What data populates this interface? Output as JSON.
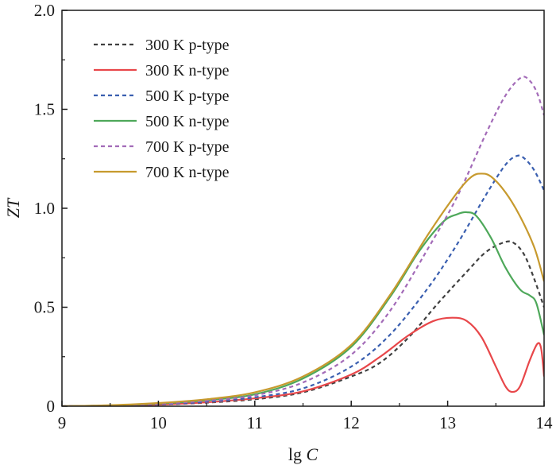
{
  "chart_data": {
    "type": "line",
    "xlabel_text": "lg ",
    "xlabel_var": "C",
    "ylabel": "ZT",
    "xlim": [
      9,
      14
    ],
    "ylim": [
      0,
      2.0
    ],
    "xticks": [
      9,
      10,
      11,
      12,
      13,
      14
    ],
    "xtick_labels": [
      "9",
      "10",
      "11",
      "12",
      "13",
      "14"
    ],
    "yticks": [
      0,
      0.5,
      1.0,
      1.5,
      2.0
    ],
    "ytick_labels": [
      "0",
      "0.5",
      "1.0",
      "1.5",
      "2.0"
    ],
    "grid": false,
    "legend_position": "top-left",
    "series": [
      {
        "name": "300 K p-type",
        "color": "#404040",
        "dash": "dashed",
        "points": [
          [
            9,
            0
          ],
          [
            9.5,
            0.002
          ],
          [
            10,
            0.008
          ],
          [
            10.5,
            0.018
          ],
          [
            11,
            0.035
          ],
          [
            11.5,
            0.07
          ],
          [
            12,
            0.15
          ],
          [
            12.3,
            0.22
          ],
          [
            12.6,
            0.35
          ],
          [
            12.9,
            0.52
          ],
          [
            13.2,
            0.68
          ],
          [
            13.4,
            0.78
          ],
          [
            13.6,
            0.83
          ],
          [
            13.7,
            0.82
          ],
          [
            13.8,
            0.76
          ],
          [
            13.9,
            0.64
          ],
          [
            14,
            0.5
          ]
        ]
      },
      {
        "name": "300 K n-type",
        "color": "#e8474a",
        "dash": "solid",
        "points": [
          [
            9,
            0
          ],
          [
            9.5,
            0.002
          ],
          [
            10,
            0.008
          ],
          [
            10.5,
            0.02
          ],
          [
            11,
            0.04
          ],
          [
            11.5,
            0.075
          ],
          [
            12,
            0.16
          ],
          [
            12.3,
            0.25
          ],
          [
            12.6,
            0.36
          ],
          [
            12.85,
            0.43
          ],
          [
            13.05,
            0.447
          ],
          [
            13.2,
            0.43
          ],
          [
            13.35,
            0.35
          ],
          [
            13.5,
            0.2
          ],
          [
            13.6,
            0.1
          ],
          [
            13.67,
            0.072
          ],
          [
            13.75,
            0.1
          ],
          [
            13.85,
            0.23
          ],
          [
            13.93,
            0.315
          ],
          [
            13.97,
            0.29
          ],
          [
            14,
            0.15
          ]
        ]
      },
      {
        "name": "500 K p-type",
        "color": "#3a5fb0",
        "dash": "dashed",
        "points": [
          [
            9,
            0
          ],
          [
            9.5,
            0.003
          ],
          [
            10,
            0.01
          ],
          [
            10.5,
            0.022
          ],
          [
            11,
            0.045
          ],
          [
            11.5,
            0.09
          ],
          [
            12,
            0.2
          ],
          [
            12.4,
            0.36
          ],
          [
            12.8,
            0.6
          ],
          [
            13.1,
            0.82
          ],
          [
            13.4,
            1.07
          ],
          [
            13.6,
            1.22
          ],
          [
            13.72,
            1.265
          ],
          [
            13.8,
            1.25
          ],
          [
            13.9,
            1.19
          ],
          [
            14,
            1.09
          ]
        ]
      },
      {
        "name": "500 K n-type",
        "color": "#4ea85a",
        "dash": "solid",
        "points": [
          [
            9,
            0
          ],
          [
            9.5,
            0.004
          ],
          [
            10,
            0.013
          ],
          [
            10.5,
            0.03
          ],
          [
            11,
            0.06
          ],
          [
            11.5,
            0.14
          ],
          [
            12,
            0.3
          ],
          [
            12.4,
            0.55
          ],
          [
            12.7,
            0.78
          ],
          [
            12.95,
            0.93
          ],
          [
            13.1,
            0.97
          ],
          [
            13.2,
            0.98
          ],
          [
            13.3,
            0.96
          ],
          [
            13.45,
            0.85
          ],
          [
            13.6,
            0.7
          ],
          [
            13.75,
            0.59
          ],
          [
            13.85,
            0.56
          ],
          [
            13.92,
            0.52
          ],
          [
            14,
            0.36
          ]
        ]
      },
      {
        "name": "700 K p-type",
        "color": "#a36bb8",
        "dash": "dashed",
        "points": [
          [
            9,
            0
          ],
          [
            9.5,
            0.004
          ],
          [
            10,
            0.012
          ],
          [
            10.5,
            0.028
          ],
          [
            11,
            0.055
          ],
          [
            11.5,
            0.12
          ],
          [
            12,
            0.26
          ],
          [
            12.4,
            0.48
          ],
          [
            12.8,
            0.8
          ],
          [
            13.1,
            1.06
          ],
          [
            13.4,
            1.38
          ],
          [
            13.6,
            1.57
          ],
          [
            13.76,
            1.66
          ],
          [
            13.85,
            1.645
          ],
          [
            13.93,
            1.58
          ],
          [
            14,
            1.47
          ]
        ]
      },
      {
        "name": "700 K n-type",
        "color": "#c79a2e",
        "dash": "solid",
        "points": [
          [
            9,
            0
          ],
          [
            9.5,
            0.005
          ],
          [
            10,
            0.016
          ],
          [
            10.5,
            0.035
          ],
          [
            11,
            0.07
          ],
          [
            11.5,
            0.15
          ],
          [
            12,
            0.31
          ],
          [
            12.4,
            0.56
          ],
          [
            12.8,
            0.87
          ],
          [
            13.1,
            1.08
          ],
          [
            13.25,
            1.16
          ],
          [
            13.35,
            1.175
          ],
          [
            13.45,
            1.16
          ],
          [
            13.6,
            1.08
          ],
          [
            13.75,
            0.96
          ],
          [
            13.9,
            0.8
          ],
          [
            14,
            0.63
          ]
        ]
      }
    ]
  }
}
